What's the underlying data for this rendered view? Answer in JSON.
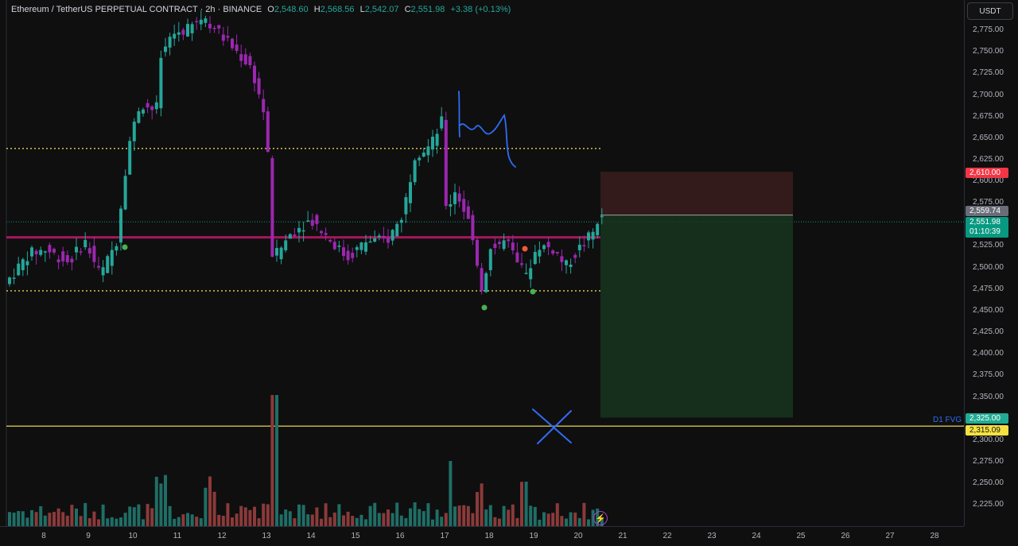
{
  "header": {
    "symbol": "Ethereum / TetherUS PERPETUAL CONTRACT · 2h · BINANCE",
    "o_label": "O",
    "o": "2,548.60",
    "h_label": "H",
    "h": "2,568.56",
    "l_label": "L",
    "l": "2,542.07",
    "c_label": "C",
    "c": "2,551.98",
    "change": "+3.38 (+0.13%)"
  },
  "currency_button": "USDT",
  "price_axis": {
    "ticks": [
      "2,775.00",
      "2,750.00",
      "2,725.00",
      "2,700.00",
      "2,675.00",
      "2,650.00",
      "2,625.00",
      "2,600.00",
      "2,575.00",
      "2,525.00",
      "2,500.00",
      "2,475.00",
      "2,450.00",
      "2,425.00",
      "2,400.00",
      "2,375.00",
      "2,350.00",
      "2,300.00",
      "2,275.00",
      "2,250.00",
      "2,225.00"
    ],
    "labels": {
      "stop": {
        "text": "2,610.00",
        "color": "#f23645"
      },
      "entry": {
        "text": "2,559.74",
        "color": "#6a6d78"
      },
      "last": {
        "text": "2,551.98",
        "countdown": "01:10:39",
        "color": "#089981"
      },
      "target": {
        "text": "2,325.00",
        "color": "#22ab94"
      },
      "fvg": {
        "text": "2,315.09",
        "color": "#f5e142"
      }
    }
  },
  "fvg_label": "D1 FVG",
  "time_axis": [
    "8",
    "9",
    "10",
    "11",
    "12",
    "13",
    "14",
    "15",
    "16",
    "17",
    "18",
    "19",
    "20",
    "21",
    "22",
    "23",
    "24",
    "25",
    "26",
    "27",
    "28"
  ],
  "icons": {
    "lightning": "lightning-icon"
  },
  "colors": {
    "up": "#26a69a",
    "down": "#9c27b0",
    "vol_up": "#1f6e66",
    "vol_down": "#8b3a3a"
  },
  "chart_data": {
    "type": "candlestick",
    "symbol": "Ethereum / TetherUS PERPETUAL CONTRACT",
    "interval": "2h",
    "ylim": [
      2200,
      2790
    ],
    "levels": {
      "resistance_dotted": 2637,
      "support_dotted": 2472,
      "pink_line": 2534,
      "fvg_line": 2315.09,
      "stop": 2610,
      "entry": 2559.74,
      "target": 2325
    }
  }
}
